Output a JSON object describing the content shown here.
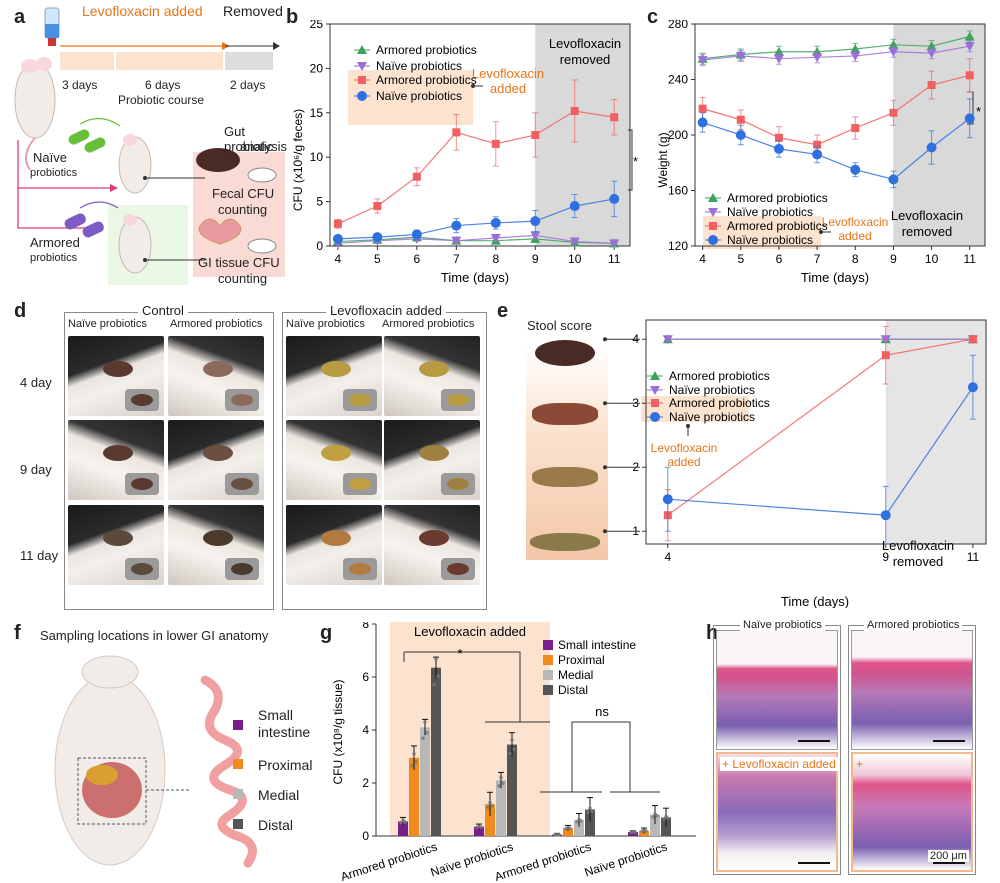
{
  "panels": {
    "a": "a",
    "b": "b",
    "c": "c",
    "d": "d",
    "e": "e",
    "f": "f",
    "g": "g",
    "h": "h"
  },
  "a": {
    "levo_added": "Levofloxacin added",
    "removed": "Removed",
    "days": [
      "3 days",
      "6 days",
      "2 days"
    ],
    "course": "Probiotic course",
    "naive": "Naïve",
    "probiotics": "probiotics",
    "armored": "Armored",
    "probiotics2": "probiotics",
    "gut1": "Gut probiotic",
    "gut2": "analysis",
    "fecal1": "Fecal CFU",
    "fecal2": "counting",
    "gi1": "GI tissue CFU",
    "gi2": "counting"
  },
  "b": {
    "ylabel": "CFU (x10⁶/g feces)",
    "xlabel": "Time (days)",
    "levo": "Levofloxacin",
    "added": "added",
    "shade1": "Levofloxacin",
    "shade2": "removed",
    "star": "*",
    "legend": [
      "Armored probiotics",
      "Naïve probiotics",
      "Armored probiotics",
      "Naïve probiotics"
    ]
  },
  "c": {
    "ylabel": "Weight (g)",
    "xlabel": "Time (days)",
    "levo": "Levofloxacin",
    "added": "added",
    "shade1": "Levofloxacin",
    "shade2": "removed",
    "star": "*",
    "legend": [
      "Armored probiotics",
      "Naïve probiotics",
      "Armored probiotics",
      "Naïve probiotics"
    ]
  },
  "d": {
    "control": "Control",
    "levo": "Levofloxacin added",
    "cols": [
      "Naïve probiotics",
      "Armored probiotics",
      "Naïve probiotics",
      "Armored probiotics"
    ],
    "rows": [
      "4 day",
      "9 day",
      "11 day"
    ]
  },
  "e": {
    "stool": "Stool score",
    "xlabel": "Time (days)",
    "levo": "Levofloxacin",
    "added": "added",
    "shade1": "Levofloxacin",
    "shade2": "removed",
    "legend": [
      "Armored probiotics",
      "Naïve probiotics",
      "Armored probiotics",
      "Naïve probiotics"
    ]
  },
  "f": {
    "title": "Sampling locations in lower GI anatomy",
    "small1": "Small",
    "small2": "intestine",
    "proximal": "Proximal",
    "medial": "Medial",
    "distal": "Distal"
  },
  "g": {
    "ylabel": "CFU (x10⁸/g tissue)",
    "levo": "Levofloxacin added",
    "star": "*",
    "ns": "ns",
    "legend": [
      "Small intestine",
      "Proximal",
      "Medial",
      "Distal"
    ]
  },
  "h": {
    "naive": "Naïve probiotics",
    "armored": "Armored probiotics",
    "levo": "+ Levofloxacin added",
    "plus": "+",
    "scale": "200 μm"
  },
  "colors": {
    "green": "#3aa35a",
    "purple": "#9b6fd6",
    "red": "#f06060",
    "blue": "#2f6fe0",
    "orange": "#e8751a",
    "peach": "#fbe3cf",
    "shade": "#d9d9d9"
  },
  "chart_data": [
    {
      "type": "line",
      "panel": "b",
      "x": [
        4,
        5,
        6,
        7,
        8,
        9,
        10,
        11
      ],
      "xlabel": "Time (days)",
      "ylabel": "CFU (x10⁶/g feces)",
      "ylim": [
        0,
        25
      ],
      "series": [
        {
          "name": "Armored probiotics",
          "color": "#3aa35a",
          "marker": "triangle",
          "values": [
            0.5,
            0.7,
            1.0,
            0.6,
            0.6,
            0.8,
            0.4,
            0.3
          ],
          "err": [
            0.2,
            0.3,
            0.3,
            0.3,
            0.3,
            0.4,
            0.2,
            0.2
          ]
        },
        {
          "name": "Naïve probiotics",
          "color": "#9b6fd6",
          "marker": "triangle-down",
          "values": [
            0.3,
            0.6,
            0.8,
            0.6,
            0.9,
            1.2,
            0.5,
            0.3
          ],
          "err": [
            0.2,
            0.3,
            0.3,
            0.3,
            0.4,
            0.4,
            0.3,
            0.2
          ]
        },
        {
          "name": "Armored probiotics",
          "color": "#f06060",
          "marker": "square",
          "values": [
            2.5,
            4.5,
            7.8,
            12.8,
            11.5,
            12.5,
            15.2,
            14.5
          ],
          "err": [
            0.5,
            0.8,
            1.0,
            2.0,
            2.5,
            2.5,
            3.5,
            2.0
          ]
        },
        {
          "name": "Naïve probiotics",
          "color": "#2f6fe0",
          "marker": "circle",
          "values": [
            0.8,
            1.0,
            1.3,
            2.3,
            2.6,
            2.8,
            4.5,
            5.3
          ],
          "err": [
            0.4,
            0.4,
            0.5,
            0.8,
            0.7,
            1.2,
            1.3,
            2.0
          ]
        }
      ]
    },
    {
      "type": "line",
      "panel": "c",
      "x": [
        4,
        5,
        6,
        7,
        8,
        9,
        10,
        11
      ],
      "xlabel": "Time (days)",
      "ylabel": "Weight (g)",
      "ylim": [
        120,
        280
      ],
      "series": [
        {
          "name": "Armored probiotics",
          "color": "#3aa35a",
          "marker": "triangle",
          "values": [
            255,
            258,
            260,
            260,
            262,
            265,
            264,
            271
          ],
          "err": [
            4,
            4,
            4,
            4,
            4,
            4,
            4,
            4
          ]
        },
        {
          "name": "Naïve probiotics",
          "color": "#9b6fd6",
          "marker": "triangle-down",
          "values": [
            254,
            257,
            255,
            256,
            257,
            260,
            259,
            264
          ],
          "err": [
            4,
            4,
            4,
            4,
            4,
            4,
            4,
            4
          ]
        },
        {
          "name": "Armored probiotics",
          "color": "#f06060",
          "marker": "square",
          "values": [
            219,
            211,
            198,
            193,
            205,
            216,
            236,
            243
          ],
          "err": [
            8,
            7,
            8,
            7,
            8,
            9,
            10,
            12
          ]
        },
        {
          "name": "Naïve probiotics",
          "color": "#2f6fe0",
          "marker": "circle",
          "values": [
            209,
            200,
            190,
            186,
            175,
            168,
            191,
            212
          ],
          "err": [
            7,
            7,
            6,
            6,
            5,
            6,
            12,
            14
          ]
        }
      ]
    },
    {
      "type": "line",
      "panel": "e",
      "x": [
        4,
        9,
        11
      ],
      "xlabel": "Time (days)",
      "ylim": [
        0.8,
        4.3
      ],
      "y_ticks": [
        "1",
        "2",
        "3",
        "4"
      ],
      "series": [
        {
          "name": "Armored probiotics",
          "color": "#3aa35a",
          "marker": "triangle",
          "values": [
            4,
            4,
            4
          ]
        },
        {
          "name": "Naïve probiotics",
          "color": "#9b6fd6",
          "marker": "triangle-down",
          "values": [
            4,
            4,
            4
          ]
        },
        {
          "name": "Armored probiotics",
          "color": "#f06060",
          "marker": "square",
          "values": [
            1.25,
            3.75,
            4.0
          ],
          "err": [
            0.4,
            0.45,
            0.0
          ]
        },
        {
          "name": "Naïve probiotics",
          "color": "#2f6fe0",
          "marker": "circle",
          "values": [
            1.5,
            1.25,
            3.25
          ],
          "err": [
            0.5,
            0.45,
            0.5
          ]
        }
      ]
    },
    {
      "type": "bar",
      "panel": "g",
      "categories": [
        "Armored probiotics",
        "Naïve probiotics",
        "Armored probiotics",
        "Naïve probiotics"
      ],
      "ylabel": "CFU (x10⁸/g tissue)",
      "ylim": [
        0,
        8
      ],
      "series": [
        {
          "name": "Small intestine",
          "color": "#7a1f8a",
          "values": [
            0.55,
            0.35,
            0.05,
            0.15
          ],
          "err": [
            0.15,
            0.1,
            0.05,
            0.05
          ]
        },
        {
          "name": "Proximal",
          "color": "#f08a1c",
          "values": [
            2.95,
            1.2,
            0.3,
            0.2
          ],
          "err": [
            0.45,
            0.45,
            0.1,
            0.1
          ]
        },
        {
          "name": "Medial",
          "color": "#b8b8b8",
          "values": [
            4.1,
            2.1,
            0.6,
            0.8
          ],
          "err": [
            0.3,
            0.3,
            0.25,
            0.35
          ]
        },
        {
          "name": "Distal",
          "color": "#555555",
          "values": [
            6.35,
            3.45,
            1.0,
            0.7
          ],
          "err": [
            0.4,
            0.45,
            0.45,
            0.35
          ]
        }
      ]
    }
  ]
}
